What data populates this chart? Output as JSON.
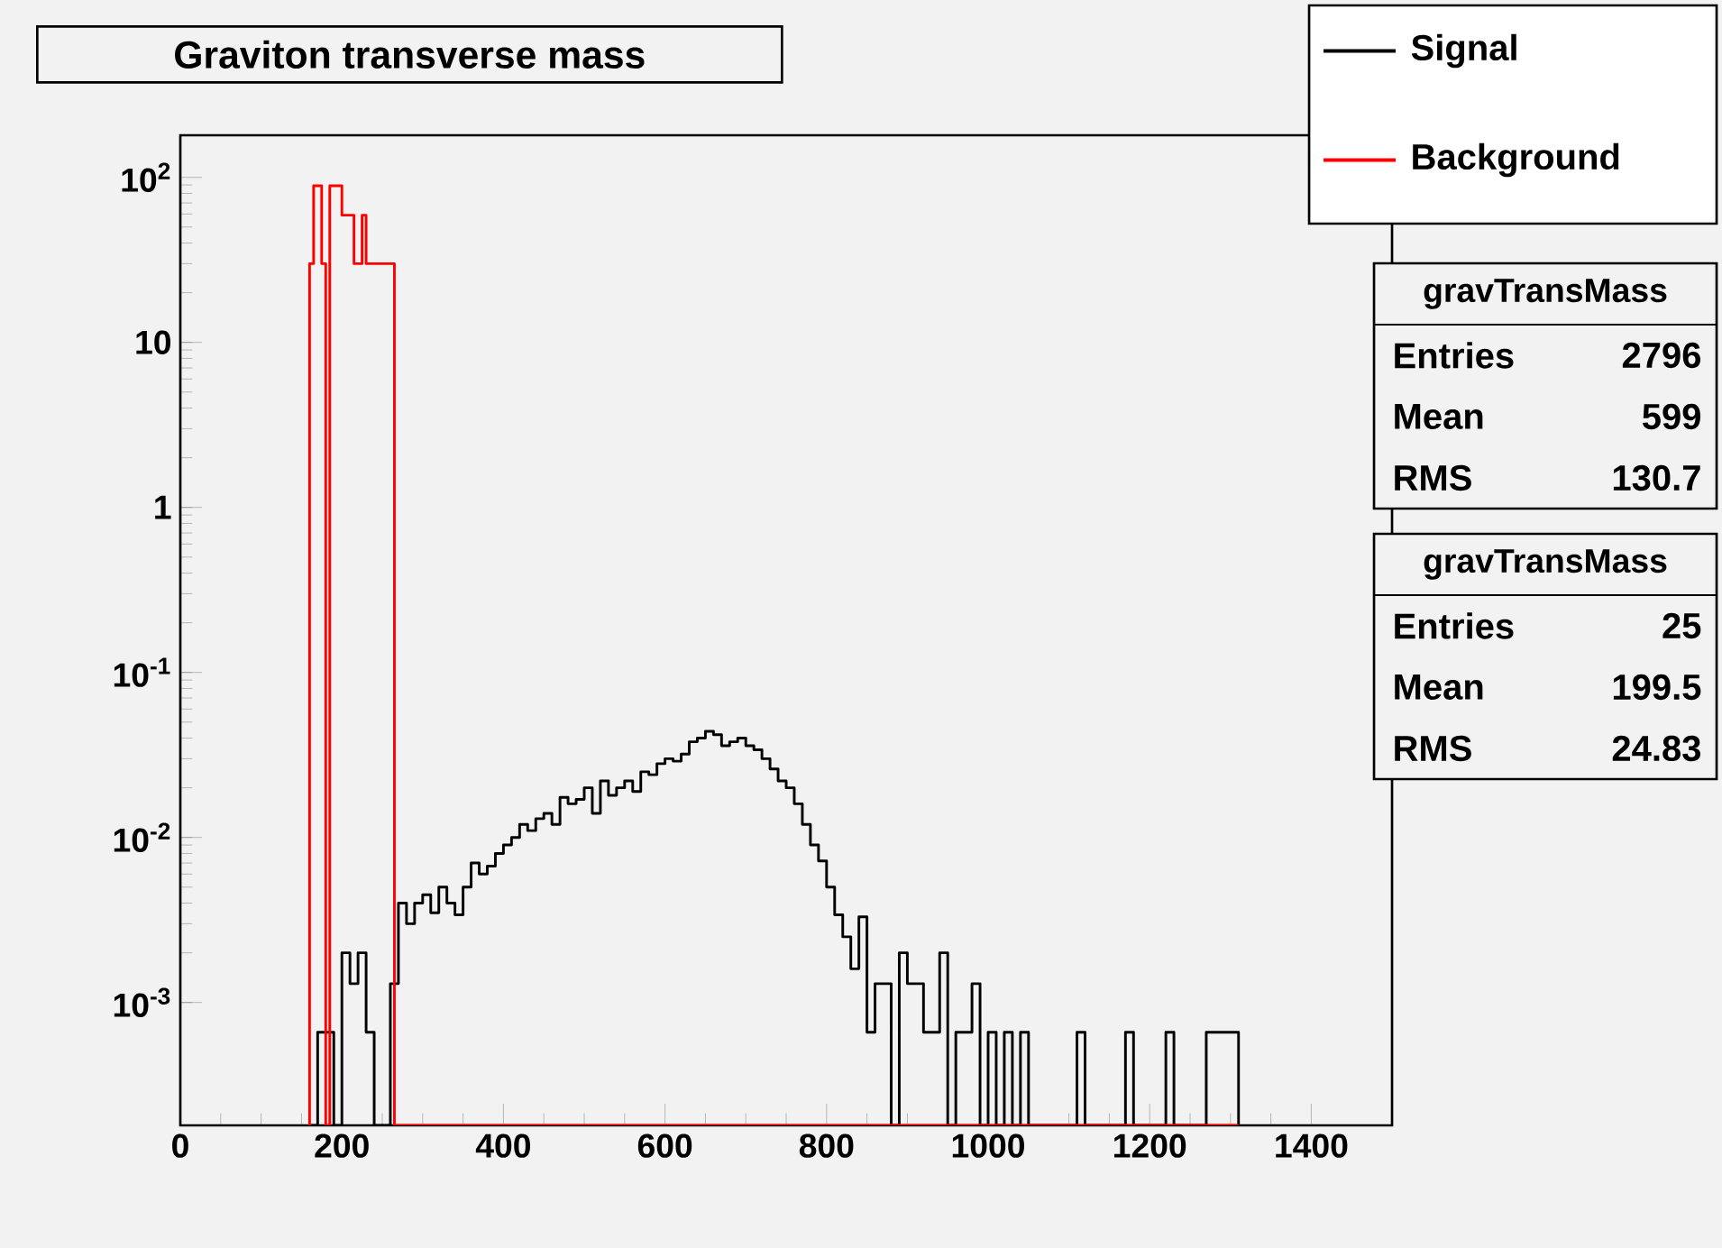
{
  "chart_data": {
    "type": "histogram",
    "title": "Graviton transverse mass",
    "xlim": [
      0,
      1500
    ],
    "xticks": [
      0,
      200,
      400,
      600,
      800,
      1000,
      1200,
      1400
    ],
    "ylim": [
      0.00018,
      180
    ],
    "log": "y",
    "yticks": [
      {
        "value": 0.001,
        "label": "10$^{-3}$"
      },
      {
        "value": 0.01,
        "label": "10$^{-2}$"
      },
      {
        "value": 0.1,
        "label": "10$^{-1}$"
      },
      1,
      10,
      {
        "value": 100,
        "label": "10$^{2}$"
      }
    ],
    "legend": "top right",
    "bins": [
      160,
      165,
      170,
      175,
      180,
      185,
      190,
      195,
      200,
      205,
      210,
      215,
      220,
      225,
      230,
      235,
      240,
      245,
      250,
      255,
      260,
      265,
      270,
      280,
      290,
      300,
      310,
      320,
      330,
      340,
      350,
      360,
      370,
      380,
      390,
      400,
      410,
      420,
      430,
      440,
      450,
      460,
      470,
      480,
      490,
      500,
      510,
      520,
      530,
      540,
      550,
      560,
      570,
      580,
      590,
      600,
      610,
      620,
      630,
      640,
      650,
      660,
      670,
      680,
      690,
      700,
      710,
      720,
      730,
      740,
      750,
      760,
      770,
      780,
      790,
      800,
      810,
      820,
      830,
      840,
      850,
      860,
      870,
      880,
      890,
      900,
      910,
      920,
      930,
      940,
      950,
      960,
      970,
      980,
      990,
      1000,
      1010,
      1020,
      1030,
      1040,
      1050,
      1060,
      1070,
      1080,
      1090,
      1100,
      1110,
      1120,
      1130,
      1140,
      1150,
      1160,
      1170,
      1180,
      1190,
      1200,
      1210,
      1220,
      1230,
      1240,
      1250,
      1260,
      1270,
      1280,
      1290,
      1300,
      1310
    ],
    "series": [
      {
        "name": "Signal",
        "color": "#000000",
        "values": [
          null,
          null,
          0.00066,
          0.00066,
          0.00066,
          0.00066,
          null,
          null,
          0.002,
          0.002,
          0.0013,
          0.0013,
          0.002,
          0.002,
          0.00066,
          0.00066,
          null,
          null,
          null,
          null,
          0.0013,
          0.0013,
          0.004,
          0.003,
          0.004,
          0.0045,
          0.0035,
          0.005,
          0.004,
          0.0034,
          0.005,
          0.007,
          0.006,
          0.0067,
          0.008,
          0.009,
          0.01,
          0.012,
          0.011,
          0.013,
          0.014,
          0.012,
          0.0175,
          0.016,
          0.017,
          0.02,
          0.014,
          0.022,
          0.018,
          0.02,
          0.022,
          0.019,
          0.025,
          0.024,
          0.028,
          0.03,
          0.029,
          0.032,
          0.038,
          0.04,
          0.044,
          0.042,
          0.036,
          0.038,
          0.04,
          0.036,
          0.034,
          0.03,
          0.026,
          0.022,
          0.02,
          0.016,
          0.012,
          0.009,
          0.0072,
          0.005,
          0.0034,
          0.0025,
          0.0016,
          0.0033,
          0.00066,
          0.0013,
          0.0013,
          null,
          0.002,
          0.0013,
          0.0013,
          0.00066,
          0.00066,
          0.002,
          null,
          0.00066,
          0.00066,
          0.0013,
          null,
          0.00066,
          null,
          0.00066,
          null,
          0.00066,
          null,
          null,
          null,
          null,
          null,
          null,
          0.00066,
          null,
          null,
          null,
          null,
          null,
          0.00066,
          null,
          null,
          null,
          null,
          0.00066,
          null,
          null,
          null,
          null,
          0.00066,
          0.00066,
          0.00066,
          0.00066
        ]
      },
      {
        "name": "Background",
        "color": "#ff0000",
        "values": [
          30,
          89,
          89,
          30,
          null,
          89,
          89,
          89,
          59,
          59,
          59,
          30,
          30,
          59,
          30,
          30,
          30,
          30,
          30,
          30,
          30,
          null,
          null,
          null,
          null,
          null,
          null,
          null,
          null,
          null,
          null,
          null,
          null,
          null,
          null,
          null,
          null,
          null,
          null,
          null,
          null,
          null,
          null,
          null,
          null,
          null,
          null,
          null,
          null,
          null,
          null,
          null,
          null,
          null,
          null,
          null,
          null,
          null,
          null,
          null,
          null,
          null,
          null,
          null,
          null,
          null,
          null,
          null,
          null,
          null,
          null,
          null,
          null,
          null,
          null,
          null,
          null,
          null,
          null,
          null,
          null,
          null,
          null,
          null,
          null,
          null,
          null,
          null,
          null,
          null,
          null,
          null,
          null,
          null,
          null,
          null,
          null,
          null,
          null,
          null,
          null,
          null,
          null,
          null,
          null,
          null,
          null,
          null,
          null,
          null,
          null,
          null,
          null,
          null,
          null,
          null,
          null,
          null,
          null,
          null,
          null,
          null,
          null,
          null,
          null,
          null
        ]
      }
    ],
    "annotations": [
      "gravTransMass",
      "Entries",
      "2796",
      "Mean",
      "599",
      "RMS",
      "130.7",
      "gravTransMass",
      "Entries",
      "25",
      "Mean",
      "199.5",
      "RMS",
      "24.83"
    ]
  }
}
